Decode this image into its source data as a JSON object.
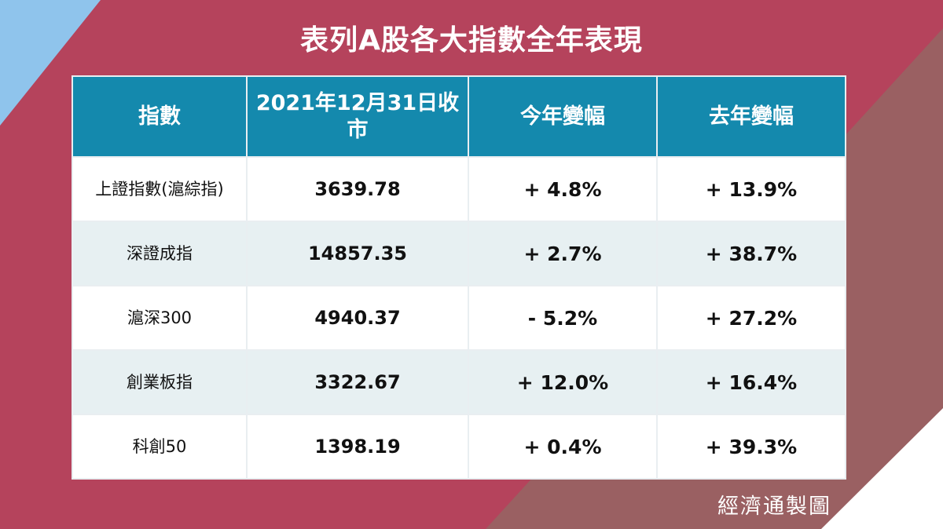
{
  "title": "表列A股各大指數全年表現",
  "source": "經濟通製圖",
  "colors": {
    "background": "#b5435c",
    "header": "#1489ad",
    "row_alt": "#e7f0f2",
    "corner_blue": "#8fc4ec",
    "corner_brown": "#9a6062"
  },
  "chart_data": {
    "type": "table",
    "columns": [
      "指數",
      "2021年12月31日收市",
      "今年變幅",
      "去年變幅"
    ],
    "rows": [
      {
        "name": "上證指數(滬綜指)",
        "close": "3639.78",
        "change_this_year": "+ 4.8%",
        "change_last_year": "+ 13.9%"
      },
      {
        "name": "深證成指",
        "close": "14857.35",
        "change_this_year": "+ 2.7%",
        "change_last_year": "+ 38.7%"
      },
      {
        "name": "滬深300",
        "close": "4940.37",
        "change_this_year": "- 5.2%",
        "change_last_year": "+ 27.2%"
      },
      {
        "name": "創業板指",
        "close": "3322.67",
        "change_this_year": "+ 12.0%",
        "change_last_year": "+ 16.4%"
      },
      {
        "name": "科創50",
        "close": "1398.19",
        "change_this_year": "+ 0.4%",
        "change_last_year": "+ 39.3%"
      }
    ]
  }
}
